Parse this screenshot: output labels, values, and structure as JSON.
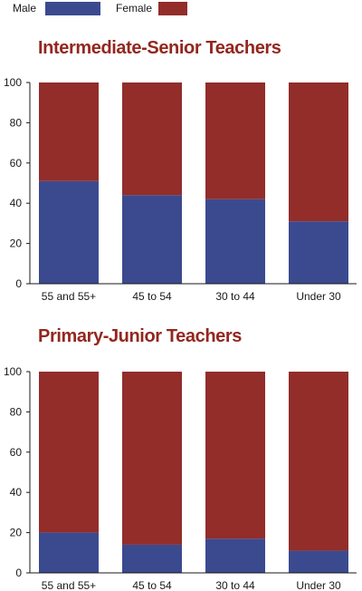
{
  "legend": {
    "items": [
      {
        "label": "Male",
        "color": "#3b4a8f"
      },
      {
        "label": "Female",
        "color": "#922d2a"
      }
    ]
  },
  "colors": {
    "male": "#3b4a8f",
    "female": "#922d2a",
    "title": "#93271f",
    "axis": "#1a1a1a",
    "text": "#1a1a1a"
  },
  "chart_data": [
    {
      "type": "bar",
      "stacked": true,
      "title": "Intermediate-Senior Teachers",
      "categories": [
        "55 and 55+",
        "45 to 54",
        "30 to 44",
        "Under 30"
      ],
      "series": [
        {
          "name": "Male",
          "values": [
            51,
            44,
            42,
            31
          ]
        },
        {
          "name": "Female",
          "values": [
            49,
            56,
            58,
            69
          ]
        }
      ],
      "ylim": [
        0,
        100
      ],
      "yticks": [
        "0",
        "20",
        "40",
        "60",
        "80",
        "100"
      ],
      "xlabel": "",
      "ylabel": "",
      "grid": false,
      "legend_position": "top-left"
    },
    {
      "type": "bar",
      "stacked": true,
      "title": "Primary-Junior Teachers",
      "categories": [
        "55 and 55+",
        "45 to 54",
        "30 to 44",
        "Under 30"
      ],
      "series": [
        {
          "name": "Male",
          "values": [
            20,
            14,
            17,
            11
          ]
        },
        {
          "name": "Female",
          "values": [
            80,
            86,
            83,
            89
          ]
        }
      ],
      "ylim": [
        0,
        100
      ],
      "yticks": [
        "0",
        "20",
        "40",
        "60",
        "80",
        "100"
      ],
      "xlabel": "",
      "ylabel": "",
      "grid": false,
      "legend_position": "top-left"
    }
  ]
}
